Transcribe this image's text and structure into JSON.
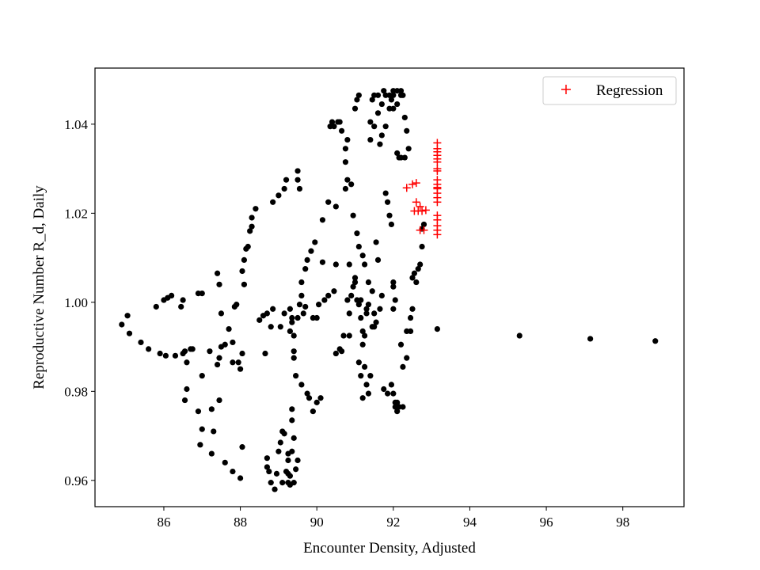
{
  "chart_data": {
    "type": "scatter",
    "title": "",
    "xlabel": "Encounter Density, Adjusted",
    "ylabel": "Reproductive Number R_d, Daily",
    "xlim": [
      84.2,
      99.6
    ],
    "ylim": [
      0.9541,
      1.0526
    ],
    "xticks": [
      86,
      88,
      90,
      92,
      94,
      96,
      98
    ],
    "xtick_labels": [
      "86",
      "88",
      "90",
      "92",
      "94",
      "96",
      "98"
    ],
    "yticks": [
      0.96,
      0.98,
      1.0,
      1.02,
      1.04
    ],
    "ytick_labels": [
      "0.96",
      "0.98",
      "1.00",
      "1.02",
      "1.04"
    ],
    "grid": false,
    "legend_position": "upper right",
    "series": [
      {
        "name": "",
        "marker": "dot",
        "color": "#000000",
        "points": [
          [
            84.9,
            0.995
          ],
          [
            85.05,
            0.997
          ],
          [
            85.1,
            0.993
          ],
          [
            85.4,
            0.991
          ],
          [
            85.6,
            0.9895
          ],
          [
            85.8,
            0.999
          ],
          [
            85.9,
            0.9885
          ],
          [
            86.0,
            1.0005
          ],
          [
            86.05,
            0.988
          ],
          [
            86.1,
            1.001
          ],
          [
            86.2,
            1.0015
          ],
          [
            86.3,
            0.988
          ],
          [
            86.45,
            0.999
          ],
          [
            86.5,
            0.9885
          ],
          [
            86.5,
            1.0005
          ],
          [
            86.55,
            0.989
          ],
          [
            86.6,
            0.9865
          ],
          [
            86.55,
            0.978
          ],
          [
            86.6,
            0.9805
          ],
          [
            86.7,
            0.9895
          ],
          [
            86.75,
            0.9895
          ],
          [
            86.9,
            0.9755
          ],
          [
            86.95,
            0.968
          ],
          [
            87.0,
            0.9715
          ],
          [
            87.0,
            0.9835
          ],
          [
            86.9,
            1.002
          ],
          [
            87.0,
            1.002
          ],
          [
            87.2,
            0.989
          ],
          [
            87.25,
            0.966
          ],
          [
            87.25,
            0.976
          ],
          [
            87.3,
            0.971
          ],
          [
            87.4,
            0.986
          ],
          [
            87.45,
            0.978
          ],
          [
            87.45,
            0.9875
          ],
          [
            87.5,
            0.99
          ],
          [
            87.4,
            1.0065
          ],
          [
            87.45,
            1.004
          ],
          [
            87.5,
            0.9975
          ],
          [
            87.6,
            0.964
          ],
          [
            87.6,
            0.9905
          ],
          [
            87.7,
            0.994
          ],
          [
            87.8,
            0.9865
          ],
          [
            87.8,
            0.991
          ],
          [
            87.8,
            0.962
          ],
          [
            87.85,
            0.999
          ],
          [
            87.9,
            0.9995
          ],
          [
            87.95,
            0.9865
          ],
          [
            88.0,
            0.985
          ],
          [
            88.0,
            0.9605
          ],
          [
            88.05,
            0.9675
          ],
          [
            88.05,
            0.9885
          ],
          [
            88.1,
            1.004
          ],
          [
            88.05,
            1.007
          ],
          [
            88.1,
            1.0095
          ],
          [
            88.15,
            1.012
          ],
          [
            88.2,
            1.0125
          ],
          [
            88.25,
            1.016
          ],
          [
            88.3,
            1.019
          ],
          [
            88.3,
            1.017
          ],
          [
            88.4,
            1.021
          ],
          [
            88.5,
            0.996
          ],
          [
            88.6,
            0.997
          ],
          [
            88.65,
            0.9885
          ],
          [
            88.7,
            0.9975
          ],
          [
            88.7,
            0.963
          ],
          [
            88.7,
            0.965
          ],
          [
            88.75,
            0.962
          ],
          [
            88.8,
            0.9595
          ],
          [
            88.8,
            0.9945
          ],
          [
            88.85,
            0.9985
          ],
          [
            88.85,
            1.0225
          ],
          [
            88.9,
            0.958
          ],
          [
            88.95,
            0.9615
          ],
          [
            89.0,
            0.9665
          ],
          [
            89.05,
            0.9945
          ],
          [
            89.0,
            1.024
          ],
          [
            89.05,
            0.9685
          ],
          [
            89.1,
            0.9595
          ],
          [
            89.1,
            0.971
          ],
          [
            89.15,
            0.9705
          ],
          [
            89.15,
            1.0255
          ],
          [
            89.15,
            0.9975
          ],
          [
            89.2,
            0.962
          ],
          [
            89.25,
            0.9615
          ],
          [
            89.25,
            0.9645
          ],
          [
            89.25,
            0.966
          ],
          [
            89.2,
            1.0275
          ],
          [
            89.25,
            0.9595
          ],
          [
            89.3,
            0.959
          ],
          [
            89.3,
            0.961
          ],
          [
            89.3,
            0.9935
          ],
          [
            89.3,
            0.9985
          ],
          [
            89.35,
            0.9955
          ],
          [
            89.35,
            0.9965
          ],
          [
            89.35,
            0.9665
          ],
          [
            89.35,
            0.9735
          ],
          [
            89.35,
            0.976
          ],
          [
            89.4,
            0.9595
          ],
          [
            89.4,
            0.9695
          ],
          [
            89.4,
            0.989
          ],
          [
            89.4,
            0.9875
          ],
          [
            89.4,
            0.9925
          ],
          [
            89.45,
            0.9625
          ],
          [
            89.5,
            0.9645
          ],
          [
            89.45,
            0.9835
          ],
          [
            89.5,
            0.9965
          ],
          [
            89.55,
            0.9995
          ],
          [
            89.5,
            1.0275
          ],
          [
            89.5,
            1.0295
          ],
          [
            89.55,
            1.0255
          ],
          [
            89.6,
            0.9815
          ],
          [
            89.6,
            1.0015
          ],
          [
            89.6,
            1.0045
          ],
          [
            89.65,
            0.9975
          ],
          [
            89.7,
            0.999
          ],
          [
            89.7,
            1.0075
          ],
          [
            89.75,
            0.9795
          ],
          [
            89.75,
            1.0095
          ],
          [
            89.8,
            0.9785
          ],
          [
            89.85,
            1.0115
          ],
          [
            89.9,
            0.9965
          ],
          [
            89.9,
            0.9755
          ],
          [
            89.95,
            1.0135
          ],
          [
            90.0,
            0.9965
          ],
          [
            90.05,
            0.9995
          ],
          [
            90.0,
            0.9775
          ],
          [
            90.1,
            0.9785
          ],
          [
            90.15,
            1.0185
          ],
          [
            90.15,
            1.009
          ],
          [
            90.2,
            1.0005
          ],
          [
            90.3,
            1.0225
          ],
          [
            90.3,
            1.0015
          ],
          [
            90.35,
            1.0395
          ],
          [
            90.4,
            1.0405
          ],
          [
            90.45,
            1.0395
          ],
          [
            90.45,
            1.0025
          ],
          [
            90.5,
            0.9885
          ],
          [
            90.5,
            1.0215
          ],
          [
            90.55,
            1.0405
          ],
          [
            90.5,
            1.0085
          ],
          [
            90.6,
            1.0405
          ],
          [
            90.65,
            1.0385
          ],
          [
            90.6,
            0.9895
          ],
          [
            90.65,
            0.989
          ],
          [
            90.7,
            0.9925
          ],
          [
            90.75,
            1.0255
          ],
          [
            90.75,
            1.0345
          ],
          [
            90.75,
            1.0315
          ],
          [
            90.8,
            1.0275
          ],
          [
            90.8,
            1.0365
          ],
          [
            90.8,
            1.0005
          ],
          [
            90.85,
            0.9975
          ],
          [
            90.85,
            1.0085
          ],
          [
            90.85,
            0.9925
          ],
          [
            90.9,
            1.0015
          ],
          [
            90.9,
            1.0265
          ],
          [
            90.95,
            1.0195
          ],
          [
            90.95,
            1.0035
          ],
          [
            91.0,
            1.0045
          ],
          [
            91.0,
            1.0435
          ],
          [
            91.0,
            1.0055
          ],
          [
            91.05,
            1.0455
          ],
          [
            91.05,
            1.0005
          ],
          [
            91.05,
            1.0155
          ],
          [
            91.1,
            1.0465
          ],
          [
            91.1,
            1.0125
          ],
          [
            91.1,
            0.9995
          ],
          [
            91.1,
            0.9865
          ],
          [
            91.15,
            0.9835
          ],
          [
            91.15,
            1.0005
          ],
          [
            91.15,
            0.9965
          ],
          [
            91.2,
            0.9785
          ],
          [
            91.2,
            0.9905
          ],
          [
            91.2,
            0.9935
          ],
          [
            91.2,
            1.0105
          ],
          [
            91.25,
            0.9855
          ],
          [
            91.25,
            0.9925
          ],
          [
            91.25,
            1.0085
          ],
          [
            91.3,
            0.9815
          ],
          [
            91.3,
            0.9985
          ],
          [
            91.3,
            0.9975
          ],
          [
            91.35,
            1.0045
          ],
          [
            91.35,
            0.9795
          ],
          [
            91.35,
            0.9995
          ],
          [
            91.4,
            0.9835
          ],
          [
            91.4,
            1.0365
          ],
          [
            91.4,
            1.0405
          ],
          [
            91.45,
            1.0455
          ],
          [
            91.45,
            1.0025
          ],
          [
            91.45,
            0.9945
          ],
          [
            91.5,
            1.0395
          ],
          [
            91.5,
            1.0465
          ],
          [
            91.5,
            0.9945
          ],
          [
            91.5,
            0.9975
          ],
          [
            91.55,
            1.0135
          ],
          [
            91.55,
            0.9955
          ],
          [
            91.6,
            1.0425
          ],
          [
            91.6,
            1.0465
          ],
          [
            91.6,
            1.0095
          ],
          [
            91.65,
            1.0355
          ],
          [
            91.65,
            0.9985
          ],
          [
            91.7,
            1.0375
          ],
          [
            91.7,
            1.0445
          ],
          [
            91.7,
            1.0015
          ],
          [
            91.75,
            1.0475
          ],
          [
            91.75,
            0.9805
          ],
          [
            91.8,
            1.0465
          ],
          [
            91.8,
            1.0395
          ],
          [
            91.8,
            1.0245
          ],
          [
            91.85,
            1.0225
          ],
          [
            91.85,
            0.9795
          ],
          [
            91.9,
            1.0435
          ],
          [
            91.9,
            1.0465
          ],
          [
            91.9,
            1.0195
          ],
          [
            91.95,
            1.0175
          ],
          [
            91.95,
            1.0455
          ],
          [
            91.95,
            0.9815
          ],
          [
            92.0,
            1.0475
          ],
          [
            92.0,
            1.0465
          ],
          [
            92.0,
            1.0435
          ],
          [
            92.0,
            1.0045
          ],
          [
            92.0,
            1.0035
          ],
          [
            92.0,
            0.9985
          ],
          [
            92.0,
            0.9795
          ],
          [
            92.05,
            0.9775
          ],
          [
            92.05,
            0.9765
          ],
          [
            92.05,
            1.0005
          ],
          [
            92.1,
            1.0335
          ],
          [
            92.1,
            1.0445
          ],
          [
            92.1,
            1.0475
          ],
          [
            92.1,
            0.9755
          ],
          [
            92.1,
            0.9775
          ],
          [
            92.15,
            1.0325
          ],
          [
            92.15,
            0.9765
          ],
          [
            92.2,
            1.0325
          ],
          [
            92.2,
            1.0465
          ],
          [
            92.2,
            1.0475
          ],
          [
            92.2,
            0.9905
          ],
          [
            92.25,
            1.0465
          ],
          [
            92.25,
            0.9855
          ],
          [
            92.25,
            0.9765
          ],
          [
            92.3,
            1.0325
          ],
          [
            92.3,
            1.0415
          ],
          [
            92.35,
            1.0385
          ],
          [
            92.35,
            0.9875
          ],
          [
            92.35,
            0.9935
          ],
          [
            92.4,
            1.0345
          ],
          [
            92.45,
            0.9935
          ],
          [
            92.45,
            0.9965
          ],
          [
            92.5,
            0.9985
          ],
          [
            92.5,
            1.0055
          ],
          [
            92.55,
            1.0065
          ],
          [
            92.6,
            1.0045
          ],
          [
            92.65,
            1.0075
          ],
          [
            92.7,
            1.0085
          ],
          [
            92.75,
            1.0125
          ],
          [
            92.75,
            1.0165
          ],
          [
            92.8,
            1.0175
          ],
          [
            93.15,
            0.994
          ],
          [
            95.3,
            0.9925
          ],
          [
            97.15,
            0.9918
          ],
          [
            98.85,
            0.9913
          ]
        ]
      },
      {
        "name": "Regression",
        "marker": "plus",
        "color": "#ff0000",
        "points": [
          [
            92.35,
            1.0257
          ],
          [
            92.5,
            1.0265
          ],
          [
            92.6,
            1.0268
          ],
          [
            92.55,
            1.0205
          ],
          [
            92.6,
            1.0225
          ],
          [
            92.65,
            1.0205
          ],
          [
            92.7,
            1.0215
          ],
          [
            92.75,
            1.0205
          ],
          [
            92.85,
            1.0207
          ],
          [
            92.7,
            1.0162
          ],
          [
            92.8,
            1.0162
          ],
          [
            93.15,
            1.0358
          ],
          [
            93.15,
            1.0345
          ],
          [
            93.15,
            1.0338
          ],
          [
            93.15,
            1.033
          ],
          [
            93.15,
            1.0322
          ],
          [
            93.15,
            1.0315
          ],
          [
            93.15,
            1.03
          ],
          [
            93.15,
            1.0295
          ],
          [
            93.15,
            1.0275
          ],
          [
            93.15,
            1.0265
          ],
          [
            93.15,
            1.0258
          ],
          [
            93.15,
            1.0255
          ],
          [
            93.15,
            1.0245
          ],
          [
            93.15,
            1.0235
          ],
          [
            93.15,
            1.0225
          ],
          [
            93.15,
            1.0195
          ],
          [
            93.15,
            1.0185
          ],
          [
            93.15,
            1.0172
          ],
          [
            93.15,
            1.0162
          ],
          [
            93.15,
            1.0152
          ]
        ]
      }
    ]
  }
}
